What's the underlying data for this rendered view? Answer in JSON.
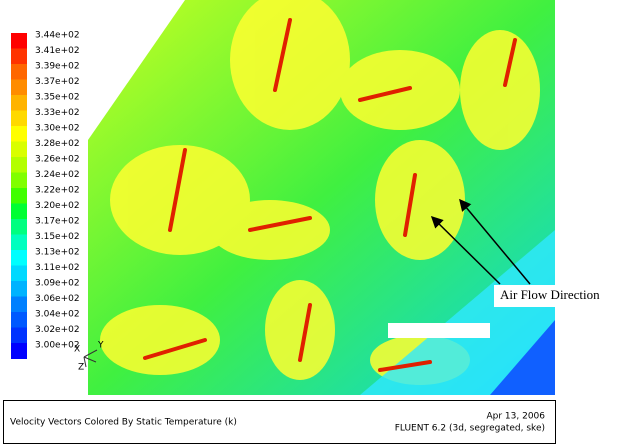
{
  "colorbar": {
    "labels": [
      "3.44e+02",
      "3.41e+02",
      "3.39e+02",
      "3.37e+02",
      "3.35e+02",
      "3.33e+02",
      "3.30e+02",
      "3.28e+02",
      "3.26e+02",
      "3.24e+02",
      "3.22e+02",
      "3.20e+02",
      "3.17e+02",
      "3.15e+02",
      "3.13e+02",
      "3.11e+02",
      "3.09e+02",
      "3.06e+02",
      "3.04e+02",
      "3.02e+02",
      "3.00e+02"
    ],
    "colors": [
      "#ff0000",
      "#ff3300",
      "#ff6600",
      "#ff8c00",
      "#ffb300",
      "#ffd900",
      "#ffff00",
      "#d9ff00",
      "#b3ff00",
      "#80ff00",
      "#40ff00",
      "#00ff33",
      "#00ff80",
      "#00ffbf",
      "#00ffff",
      "#00d9ff",
      "#00b3ff",
      "#0080ff",
      "#0059ff",
      "#0033ff",
      "#0000ff"
    ]
  },
  "axes": {
    "x": "X",
    "y": "Y",
    "z": "Z"
  },
  "annotation": "Air Flow Direction",
  "footer": {
    "title": "Velocity Vectors Colored By Static Temperature (k)",
    "date": "Apr 13, 2006",
    "version": "FLUENT 6.2 (3d, segregated, ske)"
  }
}
